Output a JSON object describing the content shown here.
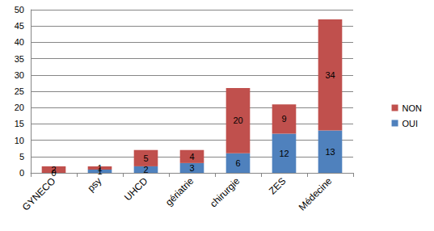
{
  "chart_data": {
    "type": "bar",
    "stacked": true,
    "data_labels": true,
    "grid": true,
    "legend": "right",
    "categories": [
      "GYNECO",
      "psy",
      "UHCD",
      "gériatrie",
      "chirurgie",
      "ZES",
      "Médecine"
    ],
    "series": [
      {
        "name": "OUI",
        "color": "#4f81bd",
        "values": [
          0,
          1,
          2,
          3,
          6,
          12,
          13
        ]
      },
      {
        "name": "NON",
        "color": "#c0504d",
        "values": [
          2,
          1,
          5,
          4,
          20,
          9,
          34
        ]
      }
    ],
    "ylim": [
      0,
      50
    ],
    "yticks": [
      0,
      5,
      10,
      15,
      20,
      25,
      30,
      35,
      40,
      45,
      50
    ]
  }
}
